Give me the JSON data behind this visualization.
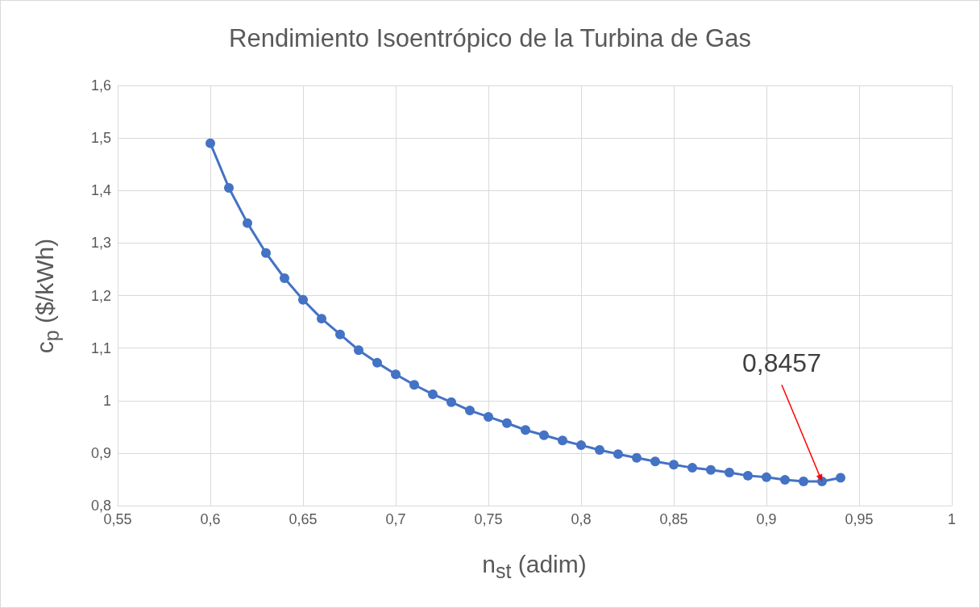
{
  "chart_data": {
    "type": "line",
    "title": "Rendimiento Isoentrópico de la Turbina de Gas",
    "xlabel": "n$_{st}$ (adim)",
    "ylabel": "c$_{p}$ ($/kWh)",
    "x": [
      0.6,
      0.61,
      0.62,
      0.63,
      0.64,
      0.65,
      0.66,
      0.67,
      0.68,
      0.69,
      0.7,
      0.71,
      0.72,
      0.73,
      0.74,
      0.75,
      0.76,
      0.77,
      0.78,
      0.79,
      0.8,
      0.81,
      0.82,
      0.83,
      0.84,
      0.85,
      0.86,
      0.87,
      0.88,
      0.89,
      0.9,
      0.91,
      0.92,
      0.93,
      0.94
    ],
    "series": [
      {
        "color": "#4472c4",
        "values": [
          1.49,
          1.405,
          1.338,
          1.281,
          1.233,
          1.192,
          1.156,
          1.126,
          1.096,
          1.072,
          1.05,
          1.03,
          1.012,
          0.997,
          0.981,
          0.969,
          0.957,
          0.944,
          0.934,
          0.924,
          0.915,
          0.906,
          0.898,
          0.891,
          0.884,
          0.878,
          0.872,
          0.868,
          0.863,
          0.857,
          0.854,
          0.849,
          0.846,
          0.846,
          0.853
        ]
      }
    ],
    "xlim": [
      0.55,
      1
    ],
    "xticks": [
      {
        "value": 0.55,
        "label": "0,55"
      },
      {
        "value": 0.6,
        "label": "0,6"
      },
      {
        "value": 0.65,
        "label": "0,65"
      },
      {
        "value": 0.7,
        "label": "0,7"
      },
      {
        "value": 0.75,
        "label": "0,75"
      },
      {
        "value": 0.8,
        "label": "0,8"
      },
      {
        "value": 0.85,
        "label": "0,85"
      },
      {
        "value": 0.9,
        "label": "0,9"
      },
      {
        "value": 0.95,
        "label": "0,95"
      },
      1
    ],
    "ylim": [
      0.8,
      1.6
    ],
    "yticks": [
      {
        "value": 0.8,
        "label": "0,8"
      },
      {
        "value": 0.9,
        "label": "0,9"
      },
      1,
      {
        "value": 1.1,
        "label": "1,1"
      },
      {
        "value": 1.2,
        "label": "1,2"
      },
      {
        "value": 1.3,
        "label": "1,3"
      },
      {
        "value": 1.4,
        "label": "1,4"
      },
      {
        "value": 1.5,
        "label": "1,5"
      },
      {
        "value": 1.6,
        "label": "1,6"
      }
    ],
    "annotations": [
      {
        "text": "0,8457",
        "x": 0.93,
        "y": 0.8457
      }
    ],
    "grid": true,
    "marker": "circle",
    "line_style": "solid"
  }
}
